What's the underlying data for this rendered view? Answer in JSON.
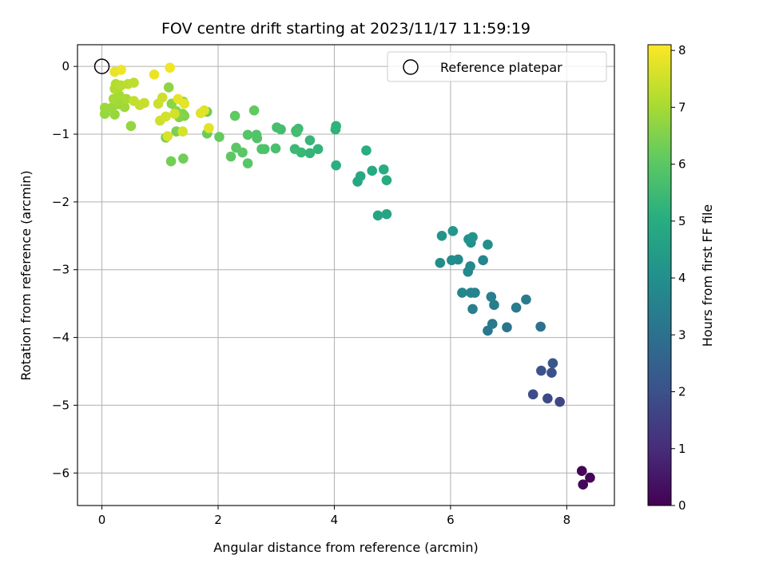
{
  "chart_data": {
    "type": "scatter",
    "title": "FOV centre drift starting at 2023/11/17 11:59:19",
    "xlabel": "Angular distance from reference (arcmin)",
    "ylabel": "Rotation from reference (arcmin)",
    "xlim": [
      -0.42,
      8.82
    ],
    "ylim": [
      -6.48,
      0.32
    ],
    "xticks": [
      0,
      2,
      4,
      6,
      8
    ],
    "yticks": [
      0,
      -1,
      -2,
      -3,
      -4,
      -5,
      -6
    ],
    "xtick_labels": [
      "0",
      "2",
      "4",
      "6",
      "8"
    ],
    "ytick_labels": [
      "0",
      "−1",
      "−2",
      "−3",
      "−4",
      "−5",
      "−6"
    ],
    "grid": true,
    "colormap": "viridis",
    "colorbar": {
      "label": "Hours from first FF file",
      "lim": [
        0,
        8.1
      ],
      "ticks": [
        0,
        1,
        2,
        3,
        4,
        5,
        6,
        7,
        8
      ],
      "tick_labels": [
        "0",
        "1",
        "2",
        "3",
        "4",
        "5",
        "6",
        "7",
        "8"
      ]
    },
    "legend": {
      "location": "top-right",
      "label": "Reference platepar"
    },
    "reference_point": {
      "x": 0,
      "y": 0
    },
    "points": [
      [
        8.26,
        -5.97,
        0.05
      ],
      [
        8.4,
        -6.07,
        0.1
      ],
      [
        8.28,
        -6.17,
        0.15
      ],
      [
        7.88,
        -4.95,
        1.7
      ],
      [
        7.67,
        -4.9,
        1.8
      ],
      [
        7.42,
        -4.84,
        1.9
      ],
      [
        7.74,
        -4.52,
        2.0
      ],
      [
        7.56,
        -4.49,
        2.1
      ],
      [
        7.76,
        -4.38,
        2.2
      ],
      [
        7.55,
        -3.84,
        3.0
      ],
      [
        6.97,
        -3.85,
        3.1
      ],
      [
        6.64,
        -3.9,
        3.2
      ],
      [
        6.72,
        -3.8,
        3.25
      ],
      [
        7.13,
        -3.56,
        3.3
      ],
      [
        7.3,
        -3.44,
        3.35
      ],
      [
        6.75,
        -3.52,
        3.4
      ],
      [
        6.7,
        -3.4,
        3.45
      ],
      [
        6.38,
        -3.58,
        3.5
      ],
      [
        6.42,
        -3.34,
        3.55
      ],
      [
        6.35,
        -3.34,
        3.6
      ],
      [
        6.2,
        -3.34,
        3.65
      ],
      [
        6.56,
        -2.86,
        3.7
      ],
      [
        6.34,
        -2.95,
        3.75
      ],
      [
        6.3,
        -3.03,
        3.8
      ],
      [
        6.13,
        -2.85,
        3.85
      ],
      [
        6.02,
        -2.86,
        3.9
      ],
      [
        5.82,
        -2.9,
        3.95
      ],
      [
        6.64,
        -2.63,
        4.0
      ],
      [
        6.35,
        -2.6,
        4.05
      ],
      [
        6.31,
        -2.55,
        4.1
      ],
      [
        6.38,
        -2.52,
        4.15
      ],
      [
        5.85,
        -2.5,
        4.2
      ],
      [
        6.04,
        -2.43,
        4.25
      ],
      [
        4.75,
        -2.2,
        4.7
      ],
      [
        4.9,
        -2.18,
        4.75
      ],
      [
        4.4,
        -1.7,
        4.8
      ],
      [
        4.45,
        -1.62,
        4.85
      ],
      [
        4.65,
        -1.54,
        4.9
      ],
      [
        4.9,
        -1.68,
        4.95
      ],
      [
        4.85,
        -1.52,
        5.0
      ],
      [
        4.55,
        -1.24,
        5.05
      ],
      [
        4.03,
        -1.46,
        5.1
      ],
      [
        4.02,
        -0.93,
        5.15
      ],
      [
        4.03,
        -0.88,
        5.2
      ],
      [
        3.72,
        -1.22,
        5.25
      ],
      [
        3.58,
        -1.28,
        5.3
      ],
      [
        3.58,
        -1.09,
        5.35
      ],
      [
        3.43,
        -1.27,
        5.4
      ],
      [
        3.32,
        -1.22,
        5.45
      ],
      [
        3.38,
        -0.92,
        5.5
      ],
      [
        3.34,
        -0.95,
        5.55
      ],
      [
        3.35,
        -0.97,
        5.6
      ],
      [
        3.08,
        -0.93,
        5.6
      ],
      [
        3.01,
        -0.9,
        5.65
      ],
      [
        2.99,
        -1.21,
        5.7
      ],
      [
        2.8,
        -1.22,
        5.75
      ],
      [
        2.75,
        -1.22,
        5.8
      ],
      [
        2.67,
        -1.06,
        5.8
      ],
      [
        2.66,
        -1.01,
        5.85
      ],
      [
        2.51,
        -1.01,
        5.9
      ],
      [
        2.51,
        -1.43,
        5.95
      ],
      [
        2.42,
        -1.27,
        6.0
      ],
      [
        2.31,
        -1.2,
        6.0
      ],
      [
        2.22,
        -1.33,
        6.05
      ],
      [
        2.29,
        -0.73,
        6.1
      ],
      [
        2.62,
        -0.65,
        6.1
      ],
      [
        2.02,
        -1.04,
        6.15
      ],
      [
        1.81,
        -0.99,
        6.2
      ],
      [
        1.81,
        -0.67,
        6.25
      ],
      [
        1.4,
        -1.36,
        6.3
      ],
      [
        1.19,
        -1.4,
        6.35
      ],
      [
        1.1,
        -1.05,
        6.4
      ],
      [
        1.28,
        -0.96,
        6.45
      ],
      [
        1.42,
        -0.73,
        6.5
      ],
      [
        1.39,
        -0.7,
        6.55
      ],
      [
        1.33,
        -0.75,
        6.6
      ],
      [
        1.28,
        -0.66,
        6.65
      ],
      [
        1.2,
        -0.55,
        6.65
      ],
      [
        1.4,
        -0.52,
        6.7
      ],
      [
        1.15,
        -0.31,
        6.7
      ],
      [
        0.5,
        -0.88,
        6.75
      ],
      [
        0.22,
        -0.71,
        6.8
      ],
      [
        0.05,
        -0.7,
        6.8
      ],
      [
        0.05,
        -0.61,
        6.85
      ],
      [
        0.17,
        -0.61,
        6.85
      ],
      [
        0.28,
        -0.56,
        6.9
      ],
      [
        0.39,
        -0.6,
        6.9
      ],
      [
        0.35,
        -0.51,
        6.95
      ],
      [
        0.2,
        -0.48,
        7.0
      ],
      [
        0.3,
        -0.43,
        7.0
      ],
      [
        0.42,
        -0.48,
        7.05
      ],
      [
        0.3,
        -0.3,
        7.05
      ],
      [
        0.22,
        -0.33,
        7.1
      ],
      [
        0.24,
        -0.26,
        7.15
      ],
      [
        0.33,
        -0.28,
        7.2
      ],
      [
        0.45,
        -0.26,
        7.25
      ],
      [
        0.55,
        -0.24,
        7.3
      ],
      [
        0.55,
        -0.51,
        7.35
      ],
      [
        0.65,
        -0.57,
        7.35
      ],
      [
        0.73,
        -0.54,
        7.4
      ],
      [
        0.97,
        -0.55,
        7.45
      ],
      [
        1.04,
        -0.46,
        7.5
      ],
      [
        1.0,
        -0.8,
        7.5
      ],
      [
        1.1,
        -0.74,
        7.55
      ],
      [
        1.25,
        -0.7,
        7.55
      ],
      [
        1.39,
        -0.96,
        7.6
      ],
      [
        1.13,
        -1.03,
        7.65
      ],
      [
        1.76,
        -0.65,
        7.7
      ],
      [
        1.7,
        -0.69,
        7.75
      ],
      [
        1.84,
        -0.91,
        7.75
      ],
      [
        1.31,
        -0.48,
        7.8
      ],
      [
        1.42,
        -0.55,
        7.8
      ],
      [
        0.9,
        -0.12,
        7.85
      ],
      [
        0.22,
        -0.08,
        7.85
      ],
      [
        0.33,
        -0.05,
        7.9
      ],
      [
        1.17,
        -0.02,
        7.95
      ]
    ]
  }
}
